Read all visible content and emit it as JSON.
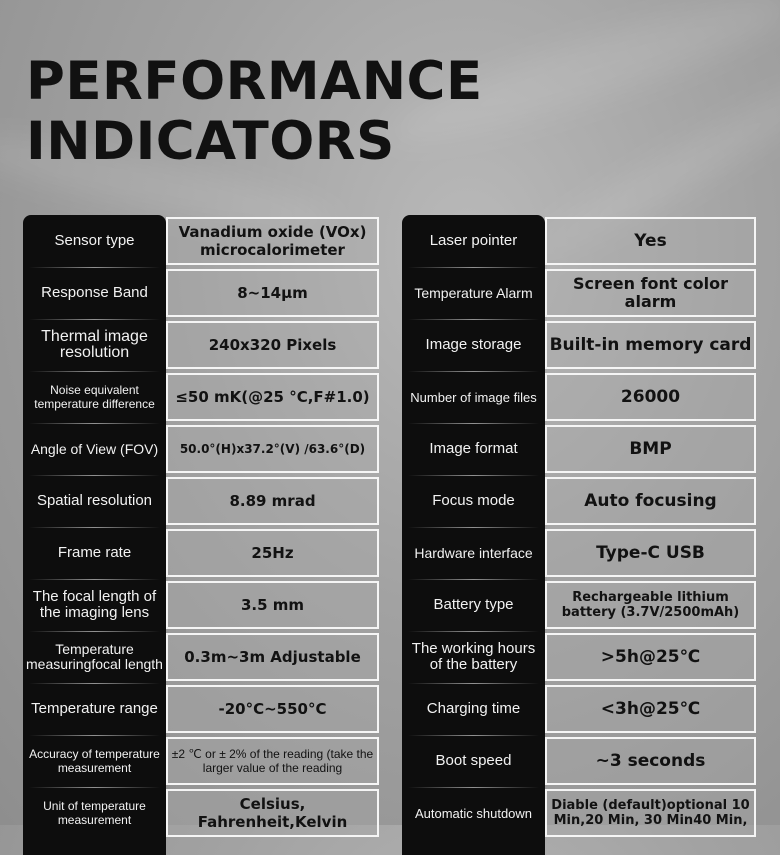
{
  "title": {
    "line1": "PERFORMANCE",
    "line2": "INDICATORS"
  },
  "left_table": [
    {
      "label": "Sensor type",
      "value": "Vanadium oxide (VOx) microcalorimeter"
    },
    {
      "label": "Response Band",
      "value": "8~14μm"
    },
    {
      "label": "Thermal image resolution",
      "value": "240x320 Pixels"
    },
    {
      "label": "Noise equivalent temperature difference",
      "value": "≤50 mK(@25 °C,F#1.0)"
    },
    {
      "label": "Angle of View (FOV)",
      "value": "50.0°(H)x37.2°(V) /63.6°(D)"
    },
    {
      "label": "Spatial resolution",
      "value": "8.89 mrad"
    },
    {
      "label": "Frame rate",
      "value": "25Hz"
    },
    {
      "label": "The focal length of the imaging lens",
      "value": "3.5 mm"
    },
    {
      "label": "Temperature measuringfocal length",
      "value": "0.3m~3m Adjustable"
    },
    {
      "label": "Temperature range",
      "value": "-20°C~550°C"
    },
    {
      "label": "Accuracy of temperature measurement",
      "value": "±2 ℃ or ± 2% of the reading (take the larger value of the reading"
    },
    {
      "label": "Unit of temperature measurement",
      "value": "Celsius, Fahrenheit,Kelvin"
    }
  ],
  "right_table": [
    {
      "label": "Laser pointer",
      "value": "Yes"
    },
    {
      "label": "Temperature Alarm",
      "value": "Screen font color alarm"
    },
    {
      "label": "Image storage",
      "value": "Built-in memory card"
    },
    {
      "label": "Number of image files",
      "value": "26000"
    },
    {
      "label": "Image format",
      "value": "BMP"
    },
    {
      "label": "Focus mode",
      "value": "Auto focusing"
    },
    {
      "label": "Hardware interface",
      "value": "Type-C USB"
    },
    {
      "label": "Battery type",
      "value": "Rechargeable lithium battery (3.7V/2500mAh)"
    },
    {
      "label": "The working hours of the battery",
      "value": ">5h@25℃"
    },
    {
      "label": "Charging time",
      "value": "<3h@25℃"
    },
    {
      "label": "Boot speed",
      "value": "~3 seconds"
    },
    {
      "label": "Automatic shutdown",
      "value": "Diable (default)optional 10 Min,20 Min, 30 Min40 Min,"
    }
  ]
}
